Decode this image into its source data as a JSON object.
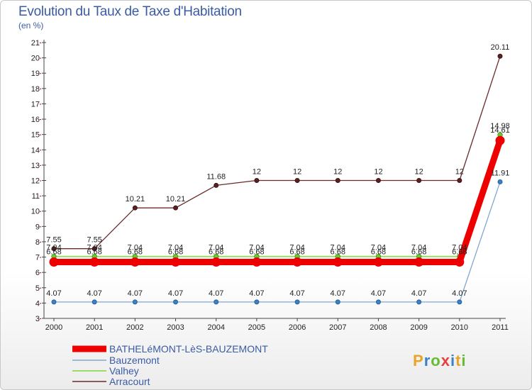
{
  "header": {
    "title": "Evolution du Taux de Taxe d'Habitation",
    "subtitle": "(en %)"
  },
  "logo": {
    "text": "Proxiti"
  },
  "chart_data": {
    "type": "line",
    "title": "Evolution du Taux de Taxe d'Habitation",
    "ylabel": "(en %)",
    "xlabel": "",
    "x": [
      "2000",
      "2001",
      "2002",
      "2003",
      "2004",
      "2005",
      "2006",
      "2007",
      "2008",
      "2009",
      "2010",
      "2011"
    ],
    "ylim": [
      3,
      21
    ],
    "yticks": [
      3,
      4,
      5,
      6,
      7,
      8,
      9,
      10,
      11,
      12,
      13,
      14,
      15,
      16,
      17,
      18,
      19,
      20,
      21
    ],
    "grid": false,
    "legend": "bottom-left",
    "series": [
      {
        "name": "BATHELéMONT-LèS-BAUZEMONT",
        "color": "#ee0000",
        "values": [
          6.68,
          6.68,
          6.68,
          6.68,
          6.68,
          6.68,
          6.68,
          6.68,
          6.68,
          6.68,
          6.68,
          14.61
        ],
        "labels": [
          "6.68",
          "6.68",
          "6.68",
          "6.68",
          "6.68",
          "6.68",
          "6.68",
          "6.68",
          "6.68",
          "6.68",
          "6.68",
          "14.61"
        ]
      },
      {
        "name": "Bauzemont",
        "color": "#7fa8d0",
        "values": [
          4.07,
          4.07,
          4.07,
          4.07,
          4.07,
          4.07,
          4.07,
          4.07,
          4.07,
          4.07,
          4.07,
          11.91
        ],
        "labels": [
          "4.07",
          "4.07",
          "4.07",
          "4.07",
          "4.07",
          "4.07",
          "4.07",
          "4.07",
          "4.07",
          "4.07",
          "4.07",
          "11.91"
        ]
      },
      {
        "name": "Valhey",
        "color": "#99dd66",
        "values": [
          7.04,
          7.04,
          7.04,
          7.04,
          7.04,
          7.04,
          7.04,
          7.04,
          7.04,
          7.04,
          7.04,
          14.98
        ],
        "labels": [
          "7.04",
          "7.04",
          "7.04",
          "7.04",
          "7.04",
          "7.04",
          "7.04",
          "7.04",
          "7.04",
          "7.04",
          "7.04",
          "14.98"
        ]
      },
      {
        "name": "Arracourt",
        "color": "#6b2b2b",
        "values": [
          7.55,
          7.55,
          10.21,
          10.21,
          11.68,
          12,
          12,
          12,
          12,
          12,
          12,
          20.11
        ],
        "labels": [
          "7.55",
          "7.55",
          "10.21",
          "10.21",
          "11.68",
          "12",
          "12",
          "12",
          "12",
          "12",
          "12",
          "20.11"
        ]
      }
    ]
  }
}
